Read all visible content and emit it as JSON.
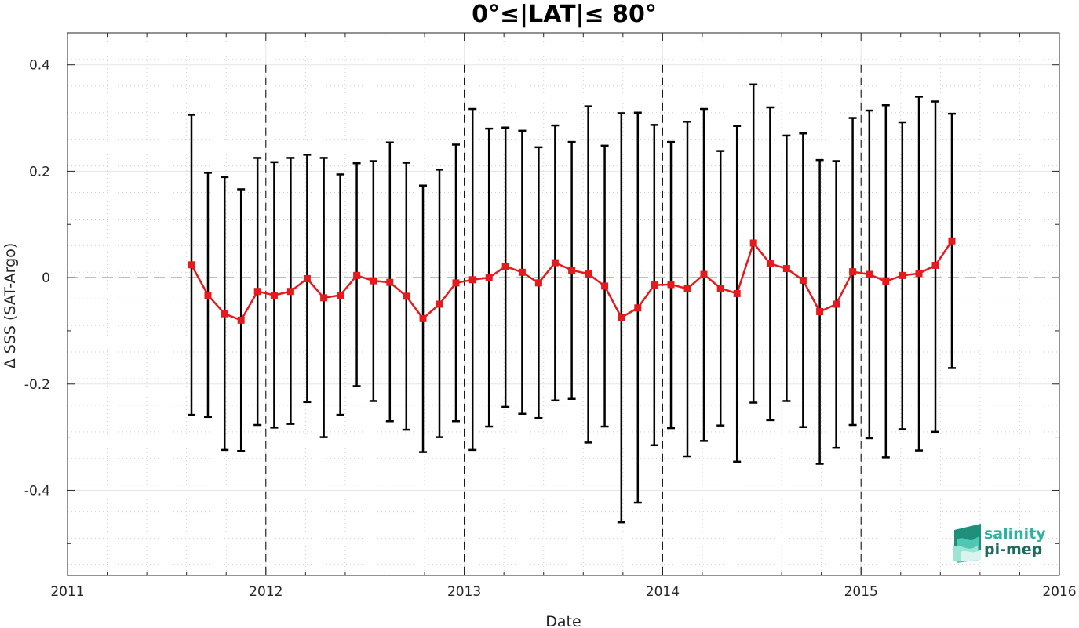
{
  "chart_data": {
    "type": "line",
    "title": "0°≤|LAT|≤ 80°",
    "xlabel": "Date",
    "ylabel": "Δ SSS (SAT-Argo)",
    "xlim": [
      2011,
      2016
    ],
    "ylim": [
      -0.56,
      0.46
    ],
    "x_ticks": [
      2011,
      2012,
      2013,
      2014,
      2015,
      2016
    ],
    "x_tick_labels": [
      "2011",
      "2012",
      "2013",
      "2014",
      "2015",
      "2016"
    ],
    "y_ticks": [
      -0.4,
      -0.2,
      0,
      0.2,
      0.4
    ],
    "y_tick_labels": [
      "-0.4",
      "-0.2",
      "0",
      "0.2",
      "0.4"
    ],
    "grid": true,
    "year_separators": [
      2012,
      2013,
      2014,
      2015
    ],
    "zero_line": 0,
    "series": [
      {
        "color": "#e41a1c",
        "marker": "square",
        "errorbar_color": "#000000",
        "x": [
          2011.625,
          2011.708,
          2011.792,
          2011.875,
          2011.958,
          2012.042,
          2012.125,
          2012.208,
          2012.292,
          2012.375,
          2012.458,
          2012.542,
          2012.625,
          2012.708,
          2012.792,
          2012.875,
          2012.958,
          2013.042,
          2013.125,
          2013.208,
          2013.292,
          2013.375,
          2013.458,
          2013.542,
          2013.625,
          2013.708,
          2013.792,
          2013.875,
          2013.958,
          2014.042,
          2014.125,
          2014.208,
          2014.292,
          2014.375,
          2014.458,
          2014.542,
          2014.625,
          2014.708,
          2014.792,
          2014.875,
          2014.958,
          2015.042,
          2015.125,
          2015.208,
          2015.292,
          2015.375,
          2015.458
        ],
        "y": [
          0.024,
          -0.033,
          -0.068,
          -0.08,
          -0.026,
          -0.033,
          -0.026,
          -0.002,
          -0.038,
          -0.033,
          0.004,
          -0.006,
          -0.009,
          -0.035,
          -0.077,
          -0.05,
          -0.01,
          -0.004,
          0.0,
          0.021,
          0.01,
          -0.01,
          0.028,
          0.014,
          0.007,
          -0.016,
          -0.075,
          -0.057,
          -0.014,
          -0.013,
          -0.021,
          0.006,
          -0.02,
          -0.03,
          0.065,
          0.026,
          0.017,
          -0.005,
          -0.064,
          -0.05,
          0.011,
          0.006,
          -0.007,
          0.004,
          0.008,
          0.023,
          0.069
        ],
        "upper": [
          0.306,
          0.197,
          0.189,
          0.166,
          0.225,
          0.217,
          0.225,
          0.231,
          0.225,
          0.194,
          0.215,
          0.219,
          0.254,
          0.216,
          0.173,
          0.203,
          0.25,
          0.317,
          0.28,
          0.282,
          0.276,
          0.245,
          0.286,
          0.255,
          0.322,
          0.248,
          0.309,
          0.31,
          0.287,
          0.255,
          0.293,
          0.317,
          0.238,
          0.285,
          0.363,
          0.32,
          0.267,
          0.271,
          0.221,
          0.219,
          0.3,
          0.314,
          0.324,
          0.292,
          0.34,
          0.331,
          0.308
        ],
        "lower": [
          -0.258,
          -0.262,
          -0.324,
          -0.326,
          -0.277,
          -0.282,
          -0.275,
          -0.234,
          -0.3,
          -0.258,
          -0.204,
          -0.232,
          -0.27,
          -0.286,
          -0.328,
          -0.3,
          -0.27,
          -0.324,
          -0.28,
          -0.243,
          -0.256,
          -0.264,
          -0.231,
          -0.228,
          -0.31,
          -0.28,
          -0.46,
          -0.423,
          -0.315,
          -0.283,
          -0.336,
          -0.307,
          -0.278,
          -0.346,
          -0.235,
          -0.268,
          -0.232,
          -0.281,
          -0.35,
          -0.32,
          -0.277,
          -0.302,
          -0.338,
          -0.285,
          -0.325,
          -0.29,
          -0.17
        ]
      }
    ]
  },
  "logo": {
    "line1": "salinity",
    "line2": "pi-mep",
    "color1": "#2bb3a0",
    "color2": "#1e6b5c"
  }
}
